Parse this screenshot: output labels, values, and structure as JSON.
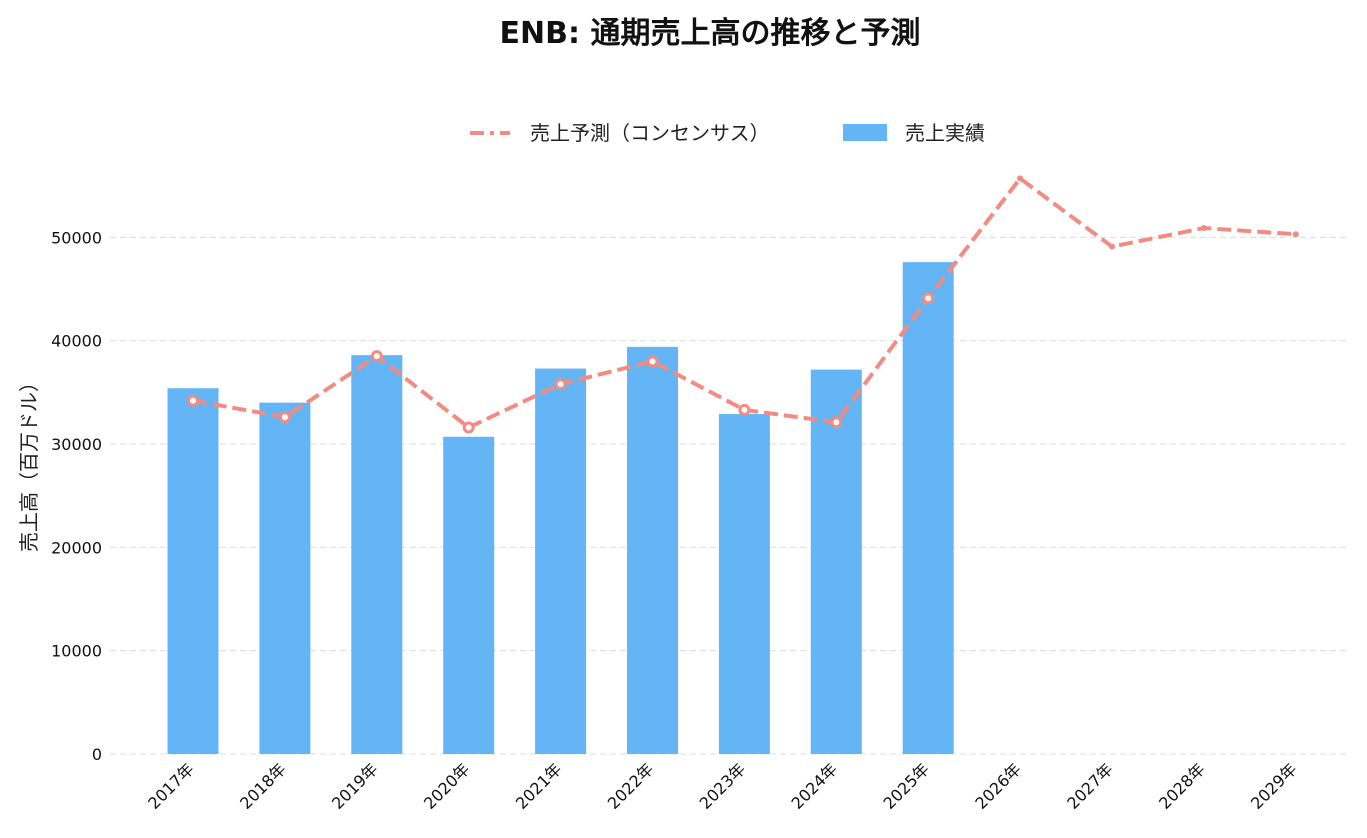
{
  "chart_data": {
    "type": "bar",
    "title": "ENB: 通期売上高の推移と予測",
    "xlabel": "",
    "ylabel": "売上高（百万ドル）",
    "ylim": [
      0,
      57000
    ],
    "yticks": [
      0,
      10000,
      20000,
      30000,
      40000,
      50000
    ],
    "categories": [
      "2017年",
      "2018年",
      "2019年",
      "2020年",
      "2021年",
      "2022年",
      "2023年",
      "2024年",
      "2025年",
      "2026年",
      "2027年",
      "2028年",
      "2029年"
    ],
    "legend_position": "top-center",
    "grid": "horizontal-dashed",
    "series": [
      {
        "name": "売上予測（コンセンサス）",
        "kind": "line",
        "style": "dashed-with-markers",
        "color": "#f28b82",
        "values": [
          34200,
          32600,
          38500,
          31600,
          35800,
          38000,
          33300,
          32100,
          44100,
          55700,
          49100,
          50900,
          50300
        ]
      },
      {
        "name": "売上実績",
        "kind": "bar",
        "color": "#64b5f6",
        "values": [
          35400,
          34000,
          38600,
          30700,
          37300,
          39400,
          32900,
          37200,
          47600,
          null,
          null,
          null,
          null
        ]
      }
    ]
  }
}
